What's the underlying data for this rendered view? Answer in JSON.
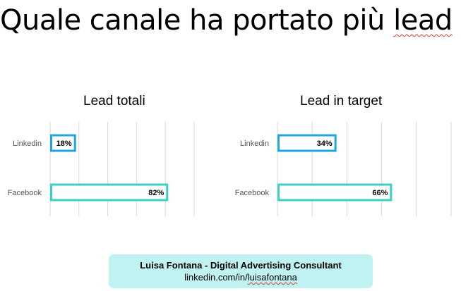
{
  "slide": {
    "title_before": "Quale canale ha portato più ",
    "title_word": "lead",
    "title_after": " ?"
  },
  "chart_data": [
    {
      "type": "bar",
      "orientation": "horizontal",
      "title": "Lead totali",
      "categories": [
        "Linkedin",
        "Facebook"
      ],
      "values": [
        18,
        82
      ],
      "value_labels": [
        "18%",
        "82%"
      ],
      "xlim": [
        0,
        100
      ],
      "grid": true,
      "bar_color": "#2a9fd8",
      "bar_colors": [
        "#1ea7e0",
        "#3ccfc3"
      ]
    },
    {
      "type": "bar",
      "orientation": "horizontal",
      "title": "Lead in target",
      "categories": [
        "Linkedin",
        "Facebook"
      ],
      "values": [
        34,
        66
      ],
      "value_labels": [
        "34%",
        "66%"
      ],
      "xlim": [
        0,
        100
      ],
      "grid": true,
      "bar_colors": [
        "#1ea7e0",
        "#3ccfc3"
      ]
    }
  ],
  "footer": {
    "name": "Luisa Fontana - Digital Advertising Consultant",
    "link_prefix": "linkedin.com/in/",
    "link_handle": "luisafontana"
  }
}
